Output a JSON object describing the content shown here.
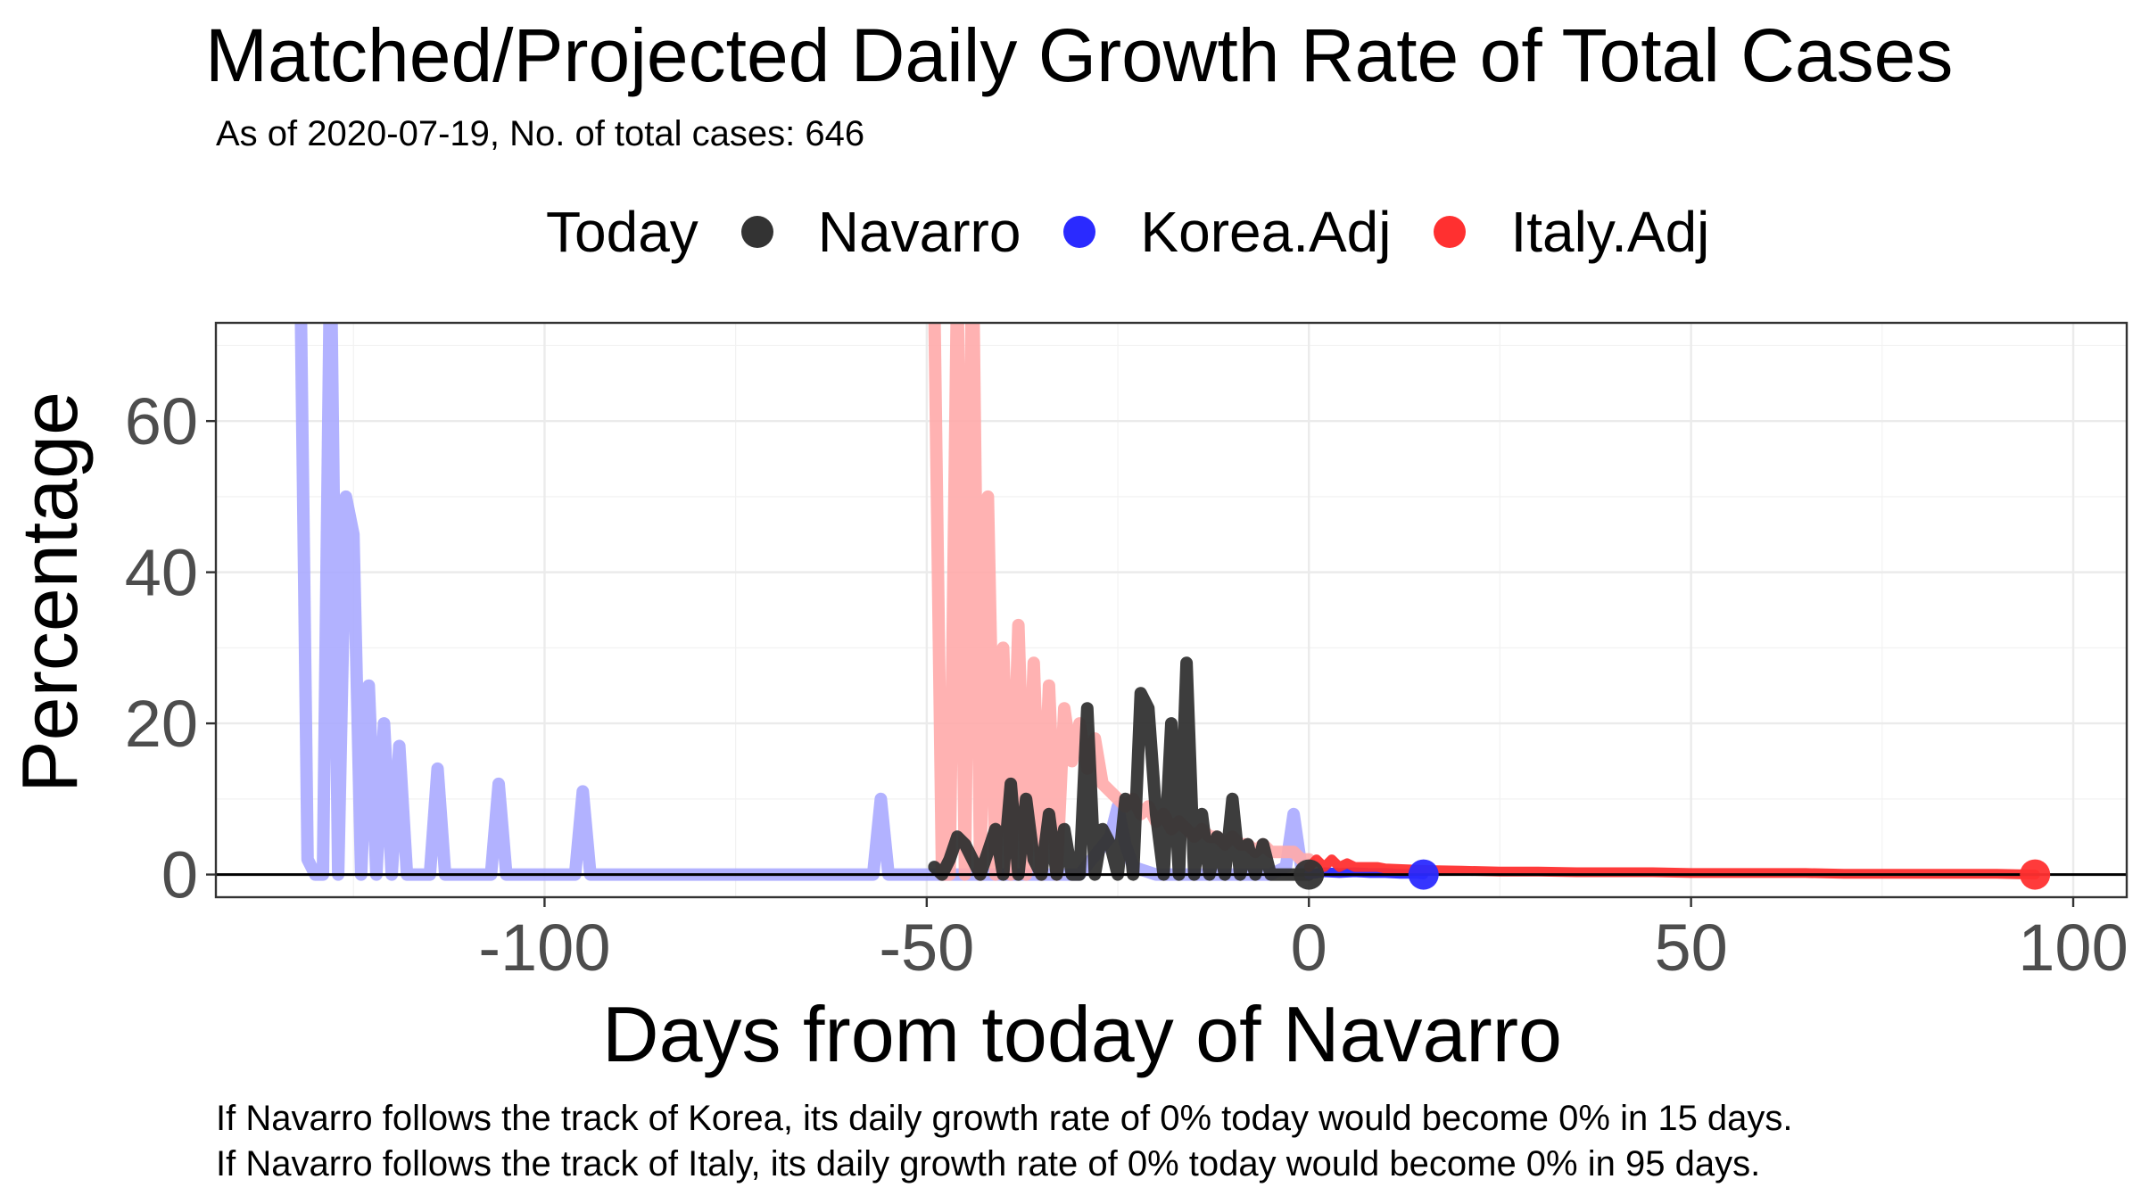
{
  "title": "Matched/Projected Daily Growth Rate of Total Cases",
  "subtitle": "As of 2020-07-19, No. of total cases: 646",
  "legend": {
    "title": "Today",
    "items": [
      {
        "label": "Navarro",
        "color": "#333333"
      },
      {
        "label": "Korea.Adj",
        "color": "#2a2aff"
      },
      {
        "label": "Italy.Adj",
        "color": "#ff3030"
      }
    ]
  },
  "captions": [
    "If Navarro follows the track of Korea, its daily growth rate of 0% today would become 0% in 15 days.",
    "If Navarro follows the track of Italy, its daily growth rate of 0% today would become 0% in 95 days."
  ],
  "chart_data": {
    "type": "line",
    "title": "Matched/Projected Daily Growth Rate of Total Cases",
    "xlabel": "Days from today of Navarro",
    "ylabel": "Percentage",
    "xlim": [
      -143,
      107
    ],
    "ylim": [
      -3,
      73
    ],
    "xticks": [
      -100,
      -50,
      0,
      50,
      100
    ],
    "xtick_labels": [
      "-100",
      "-50",
      "0",
      "50",
      "100"
    ],
    "yticks": [
      0,
      20,
      40,
      60
    ],
    "ytick_labels": [
      "0",
      "20",
      "40",
      "60"
    ],
    "grid": true,
    "legend_position": "top",
    "series": [
      {
        "name": "Korea.Adj",
        "color": "#aaaaff",
        "role": "matched",
        "x": [
          -132,
          -131,
          -130,
          -129,
          -128,
          -127,
          -126,
          -125,
          -124,
          -123,
          -122,
          -121,
          -120,
          -119,
          -118,
          -117,
          -116,
          -115,
          -114,
          -113,
          -112,
          -111,
          -110,
          -109,
          -108,
          -107,
          -106,
          -105,
          -104,
          -103,
          -102,
          -101,
          -100,
          -99,
          -98,
          -97,
          -96,
          -95,
          -94,
          -93,
          -90,
          -80,
          -70,
          -60,
          -58,
          -57,
          -56,
          -55,
          -54,
          -50,
          -45,
          -40,
          -35,
          -30,
          -26,
          -25,
          -24,
          -23,
          -20,
          -15,
          -10,
          -5,
          -3,
          -2,
          -1,
          0
        ],
        "values": [
          85,
          2,
          0,
          0,
          85,
          0,
          50,
          45,
          0,
          25,
          0,
          20,
          0,
          17,
          0,
          0,
          0,
          0,
          14,
          0,
          0,
          0,
          0,
          0,
          0,
          0,
          12,
          0,
          0,
          0,
          0,
          0,
          0,
          0,
          0,
          0,
          0,
          11,
          0,
          0,
          0,
          0,
          0,
          0,
          0,
          0,
          10,
          0,
          0,
          0,
          0,
          0,
          0,
          0,
          5,
          9,
          4,
          1,
          0,
          0,
          0,
          0,
          1,
          8,
          1,
          0
        ]
      },
      {
        "name": "Italy.Adj",
        "color": "#ffaaaa",
        "role": "matched",
        "x": [
          -49,
          -48,
          -47,
          -46,
          -45,
          -44,
          -43,
          -42,
          -41,
          -40,
          -39,
          -38,
          -37,
          -36,
          -35,
          -34,
          -33,
          -32,
          -31,
          -30,
          -29,
          -28,
          -27,
          -26,
          -25,
          -24,
          -23,
          -22,
          -21,
          -20,
          -19,
          -18,
          -17,
          -16,
          -15,
          -14,
          -13,
          -12,
          -11,
          -10,
          -9,
          -8,
          -7,
          -6,
          -5,
          -4,
          -3,
          -2,
          -1,
          0
        ],
        "values": [
          75,
          0,
          0,
          80,
          0,
          85,
          0,
          50,
          0,
          30,
          0,
          33,
          0,
          28,
          0,
          25,
          0,
          22,
          15,
          20,
          14,
          18,
          12,
          11,
          10,
          9,
          10,
          8,
          9,
          7,
          8,
          6,
          7,
          6,
          5,
          6,
          5,
          5,
          4,
          5,
          4,
          4,
          3,
          4,
          3,
          3,
          3,
          3,
          2,
          2
        ]
      },
      {
        "name": "Navarro",
        "color": "#333333",
        "role": "actual",
        "x": [
          -49,
          -48,
          -47,
          -46,
          -45,
          -44,
          -43,
          -42,
          -41,
          -40,
          -39,
          -38,
          -37,
          -36,
          -35,
          -34,
          -33,
          -32,
          -31,
          -30,
          -29,
          -28,
          -27,
          -26,
          -25,
          -24,
          -23,
          -22,
          -21,
          -20,
          -19,
          -18,
          -17,
          -16,
          -15,
          -14,
          -13,
          -12,
          -11,
          -10,
          -9,
          -8,
          -7,
          -6,
          -5,
          -4,
          -3,
          -2,
          -1,
          0
        ],
        "values": [
          1,
          0,
          2,
          5,
          4,
          2,
          0,
          3,
          6,
          0,
          12,
          0,
          10,
          2,
          0,
          8,
          0,
          6,
          0,
          0,
          22,
          0,
          6,
          4,
          0,
          10,
          0,
          24,
          22,
          8,
          0,
          20,
          0,
          28,
          0,
          8,
          0,
          5,
          0,
          10,
          0,
          4,
          0,
          4,
          0,
          0,
          0,
          0,
          0,
          0
        ]
      },
      {
        "name": "Korea.Adj",
        "color": "#2a2aff",
        "role": "projected",
        "x": [
          0,
          2,
          4,
          6,
          8,
          10,
          12,
          14,
          15
        ],
        "values": [
          0,
          0.3,
          0.2,
          0.3,
          0.2,
          0.2,
          0.1,
          0.1,
          0
        ]
      },
      {
        "name": "Italy.Adj",
        "color": "#ff3030",
        "role": "projected",
        "x": [
          0,
          1,
          2,
          3,
          4,
          5,
          6,
          7,
          8,
          9,
          10,
          15,
          20,
          25,
          30,
          35,
          40,
          45,
          50,
          55,
          60,
          65,
          70,
          75,
          80,
          85,
          90,
          95
        ],
        "values": [
          1,
          2,
          1,
          2,
          1,
          1.5,
          1,
          1,
          1,
          1,
          0.8,
          0.6,
          0.5,
          0.4,
          0.4,
          0.3,
          0.3,
          0.3,
          0.2,
          0.2,
          0.2,
          0.2,
          0.1,
          0.1,
          0.1,
          0.1,
          0.1,
          0
        ]
      }
    ],
    "today_points": [
      {
        "series": "Navarro",
        "x": 0,
        "y": 0,
        "color": "#333333"
      },
      {
        "series": "Korea.Adj",
        "x": 15,
        "y": 0,
        "color": "#2a2aff"
      },
      {
        "series": "Italy.Adj",
        "x": 95,
        "y": 0,
        "color": "#ff3030"
      }
    ],
    "hline": 0
  }
}
